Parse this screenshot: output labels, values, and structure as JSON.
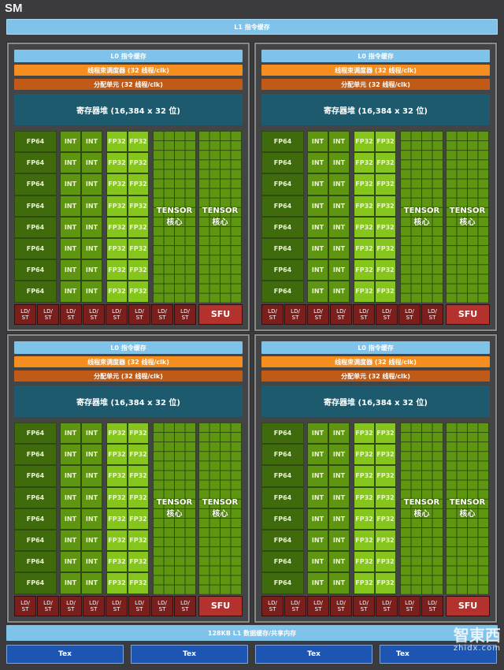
{
  "title": "SM",
  "l1_instruction_cache": "L1 指令缓存",
  "quadrant": {
    "l0_cache": "L0 指令缓存",
    "warp_scheduler": "线程束调度器 (32 线程/clk)",
    "dispatch_unit": "分配单元 (32 线程/clk)",
    "register_file": "寄存器堆 (16,384 x 32 位)",
    "fp64": "FP64",
    "int": "INT",
    "fp32": "FP32",
    "tensor": "TENSOR",
    "tensor_sub": "核心",
    "ldst_top": "LD/",
    "ldst_bottom": "ST",
    "sfu": "SFU"
  },
  "shared_memory": "128KB L1 数据缓存/共享内存",
  "tex": [
    "Tex",
    "Tex",
    "Tex",
    "Tex"
  ],
  "watermark": {
    "logo": "智東西",
    "url": "zhidx.com"
  },
  "colors": {
    "l1": "#7fc2ea",
    "scheduler": "#f58d1f",
    "dispatch": "#c05a16",
    "register": "#1d5a6d",
    "fp64": "#3f6b0c",
    "int": "#5e9612",
    "fp32": "#86c61c",
    "ldst": "#7b1f1d",
    "sfu": "#b4322d",
    "tex": "#1d55b3"
  }
}
